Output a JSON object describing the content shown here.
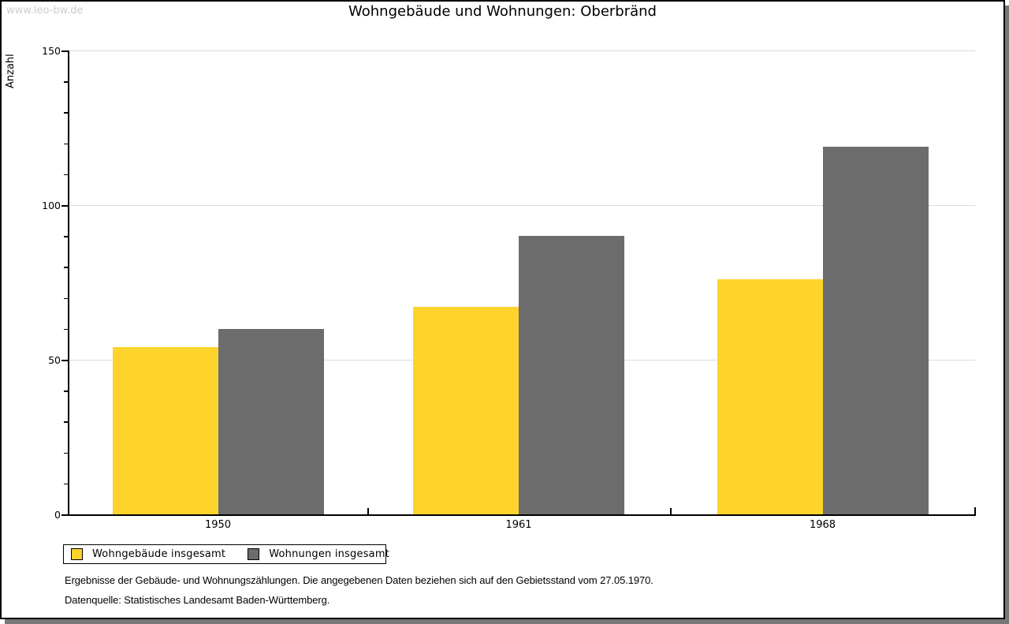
{
  "watermark": "www.leo-bw.de",
  "title": "Wohngebäude und Wohnungen: Oberbränd",
  "colors": {
    "series_wohngebaeude": "#fdd32c",
    "series_wohnungen": "#6c6c6c",
    "gridline": "#dcdcdc",
    "axis": "#000000",
    "watermark": "#cccccc",
    "frame_shadow": "#777777"
  },
  "chart_data": {
    "type": "bar",
    "title": "Wohngebäude und Wohnungen: Oberbränd",
    "xlabel": "",
    "ylabel": "Anzahl",
    "categories": [
      "1950",
      "1961",
      "1968"
    ],
    "series": [
      {
        "name": "Wohngebäude insgesamt",
        "color": "#fdd32c",
        "values": [
          54,
          67,
          76
        ]
      },
      {
        "name": "Wohnungen insgesamt",
        "color": "#6c6c6c",
        "values": [
          60,
          90,
          119
        ]
      }
    ],
    "ylim": [
      0,
      150
    ],
    "yticks": [
      0,
      50,
      100,
      150
    ],
    "minor_tick_step": 10,
    "grid": true,
    "legend_position": "bottom-left"
  },
  "footnotes": {
    "line1": "Ergebnisse der Gebäude- und Wohnungszählungen. Die angegebenen Daten beziehen sich auf den Gebietsstand vom 27.05.1970.",
    "line2": "Datenquelle: Statistisches Landesamt Baden-Württemberg."
  }
}
